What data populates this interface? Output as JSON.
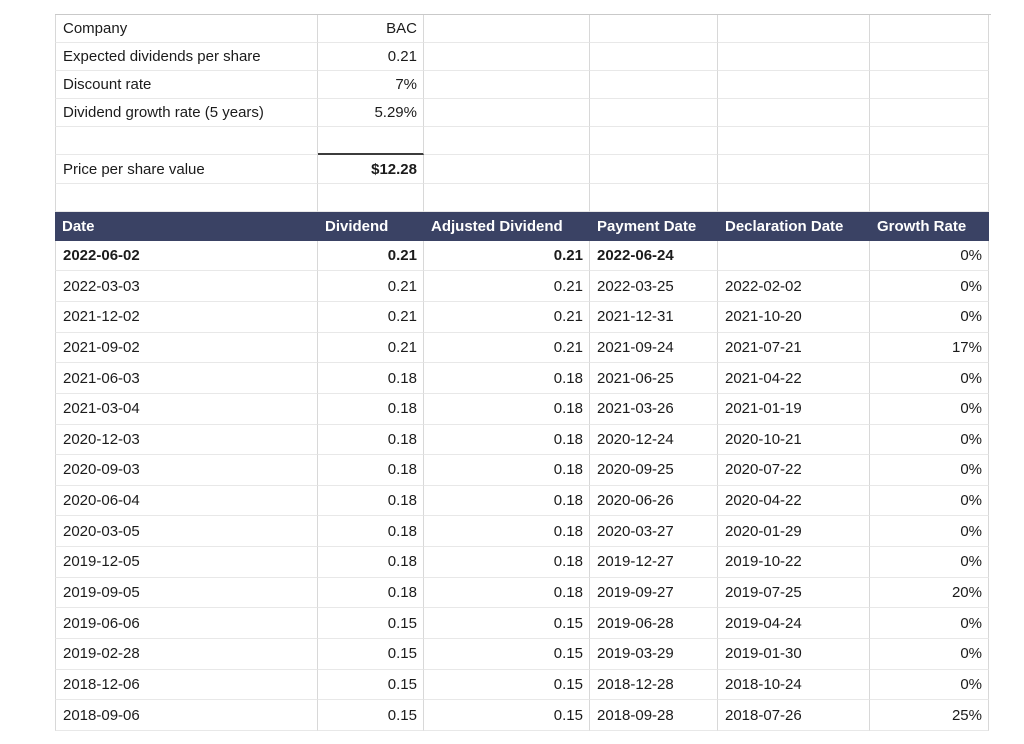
{
  "colors": {
    "table_header_bg": "#3a4264",
    "table_header_text": "#ffffff",
    "sum_line": "#3c3c3c",
    "gridline": "#d8d8d8"
  },
  "summary": {
    "rows": [
      {
        "label": "Company",
        "value": "BAC"
      },
      {
        "label": "Expected dividends per share",
        "value": "0.21"
      },
      {
        "label": "Discount rate",
        "value": "7%"
      },
      {
        "label": "Dividend growth rate (5 years)",
        "value": "5.29%"
      },
      {
        "label": "",
        "value": ""
      },
      {
        "label": "Price per share value",
        "value": "$12.28"
      },
      {
        "label": "",
        "value": ""
      }
    ]
  },
  "table": {
    "headers": [
      "Date",
      "Dividend",
      "Adjusted Dividend",
      "Payment Date",
      "Declaration Date",
      "Growth Rate"
    ],
    "rows": [
      {
        "date": "2022-06-02",
        "dividend": "0.21",
        "adjusted_dividend": "0.21",
        "payment_date": "2022-06-24",
        "declaration_date": "",
        "growth_rate": "0%"
      },
      {
        "date": "2022-03-03",
        "dividend": "0.21",
        "adjusted_dividend": "0.21",
        "payment_date": "2022-03-25",
        "declaration_date": "2022-02-02",
        "growth_rate": "0%"
      },
      {
        "date": "2021-12-02",
        "dividend": "0.21",
        "adjusted_dividend": "0.21",
        "payment_date": "2021-12-31",
        "declaration_date": "2021-10-20",
        "growth_rate": "0%"
      },
      {
        "date": "2021-09-02",
        "dividend": "0.21",
        "adjusted_dividend": "0.21",
        "payment_date": "2021-09-24",
        "declaration_date": "2021-07-21",
        "growth_rate": "17%"
      },
      {
        "date": "2021-06-03",
        "dividend": "0.18",
        "adjusted_dividend": "0.18",
        "payment_date": "2021-06-25",
        "declaration_date": "2021-04-22",
        "growth_rate": "0%"
      },
      {
        "date": "2021-03-04",
        "dividend": "0.18",
        "adjusted_dividend": "0.18",
        "payment_date": "2021-03-26",
        "declaration_date": "2021-01-19",
        "growth_rate": "0%"
      },
      {
        "date": "2020-12-03",
        "dividend": "0.18",
        "adjusted_dividend": "0.18",
        "payment_date": "2020-12-24",
        "declaration_date": "2020-10-21",
        "growth_rate": "0%"
      },
      {
        "date": "2020-09-03",
        "dividend": "0.18",
        "adjusted_dividend": "0.18",
        "payment_date": "2020-09-25",
        "declaration_date": "2020-07-22",
        "growth_rate": "0%"
      },
      {
        "date": "2020-06-04",
        "dividend": "0.18",
        "adjusted_dividend": "0.18",
        "payment_date": "2020-06-26",
        "declaration_date": "2020-04-22",
        "growth_rate": "0%"
      },
      {
        "date": "2020-03-05",
        "dividend": "0.18",
        "adjusted_dividend": "0.18",
        "payment_date": "2020-03-27",
        "declaration_date": "2020-01-29",
        "growth_rate": "0%"
      },
      {
        "date": "2019-12-05",
        "dividend": "0.18",
        "adjusted_dividend": "0.18",
        "payment_date": "2019-12-27",
        "declaration_date": "2019-10-22",
        "growth_rate": "0%"
      },
      {
        "date": "2019-09-05",
        "dividend": "0.18",
        "adjusted_dividend": "0.18",
        "payment_date": "2019-09-27",
        "declaration_date": "2019-07-25",
        "growth_rate": "20%"
      },
      {
        "date": "2019-06-06",
        "dividend": "0.15",
        "adjusted_dividend": "0.15",
        "payment_date": "2019-06-28",
        "declaration_date": "2019-04-24",
        "growth_rate": "0%"
      },
      {
        "date": "2019-02-28",
        "dividend": "0.15",
        "adjusted_dividend": "0.15",
        "payment_date": "2019-03-29",
        "declaration_date": "2019-01-30",
        "growth_rate": "0%"
      },
      {
        "date": "2018-12-06",
        "dividend": "0.15",
        "adjusted_dividend": "0.15",
        "payment_date": "2018-12-28",
        "declaration_date": "2018-10-24",
        "growth_rate": "0%"
      },
      {
        "date": "2018-09-06",
        "dividend": "0.15",
        "adjusted_dividend": "0.15",
        "payment_date": "2018-09-28",
        "declaration_date": "2018-07-26",
        "growth_rate": "25%"
      }
    ]
  }
}
